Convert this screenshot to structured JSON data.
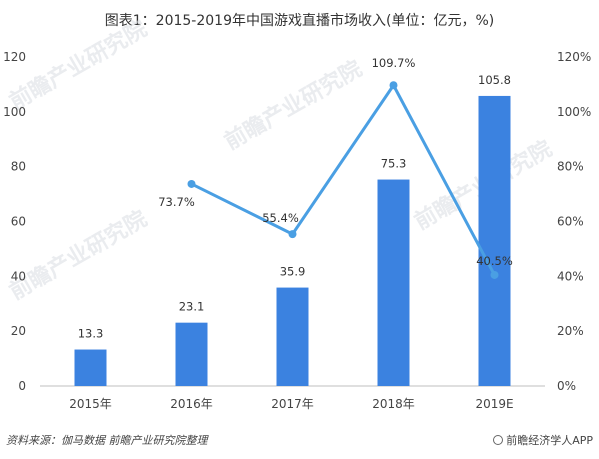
{
  "title": "图表1：2015-2019年中国游戏直播市场收入(单位：亿元，%)",
  "footer": {
    "source": "资料来源：伽马数据 前瞻产业研究院整理",
    "brand": "前瞻经济学人APP",
    "brand_icon": "speech-bubble-icon"
  },
  "watermarks": [
    "前瞻产业研究院",
    "前瞻产业研究院",
    "前瞻产业研究院",
    "前瞻产业研究院"
  ],
  "chart_data": {
    "type": "bar",
    "categories": [
      "2015年",
      "2016年",
      "2017年",
      "2018年",
      "2019E"
    ],
    "series": [
      {
        "type": "bar",
        "values": [
          13.3,
          23.1,
          35.9,
          75.3,
          105.8
        ],
        "value_labels": [
          "13.3",
          "23.1",
          "35.9",
          "75.3",
          "105.8"
        ],
        "color": "#3b82e0"
      },
      {
        "type": "line",
        "axis": "right",
        "values": [
          null,
          73.7,
          55.4,
          109.7,
          40.5
        ],
        "value_labels": [
          "",
          "73.7%",
          "55.4%",
          "109.7%",
          "40.5%"
        ],
        "color": "#4a9fe3"
      }
    ],
    "left_axis": {
      "ylim": [
        0,
        120
      ],
      "ticks": [
        "0",
        "20",
        "40",
        "60",
        "80",
        "100",
        "120"
      ]
    },
    "right_axis": {
      "ylim": [
        0,
        120
      ],
      "ticks": [
        "0%",
        "20%",
        "40%",
        "60%",
        "80%",
        "100%",
        "120%"
      ]
    },
    "grid": false,
    "legend": "none"
  }
}
